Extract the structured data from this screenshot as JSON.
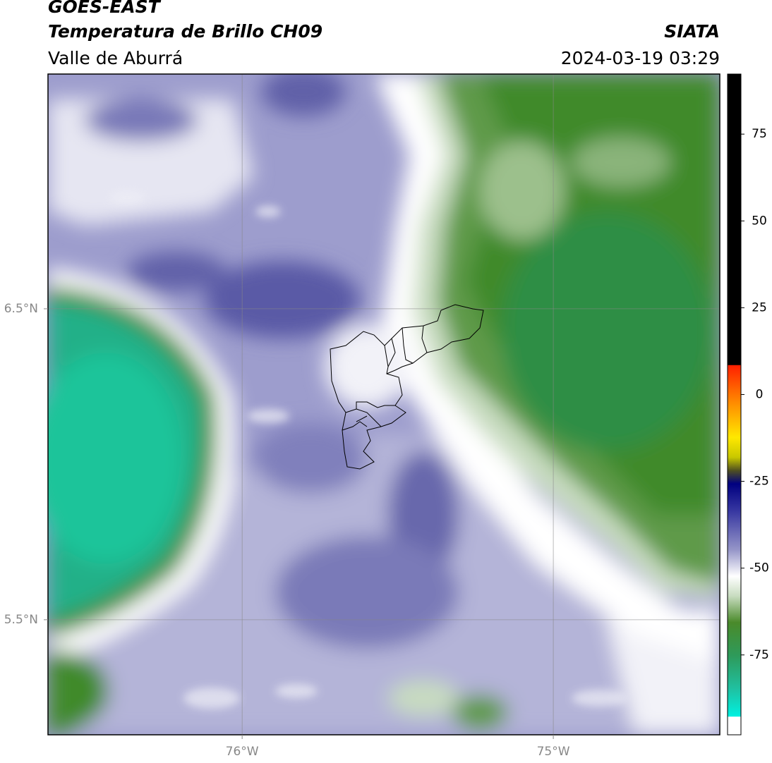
{
  "header": {
    "title_1": "GOES-EAST",
    "title_2": "Temperatura de Brillo CH09",
    "subtitle": "Valle de Aburrá",
    "organization": "SIATA",
    "datetime": "2024-03-19 03:29"
  },
  "map": {
    "xlim": [
      -76.624,
      -74.465
    ],
    "ylim": [
      5.13,
      7.255
    ],
    "xticks": [
      {
        "value": -76,
        "label": "76°W"
      },
      {
        "value": -75,
        "label": "75°W"
      }
    ],
    "yticks": [
      {
        "value": 6.5,
        "label": "6.5°N"
      },
      {
        "value": 5.5,
        "label": "5.5°N"
      }
    ]
  },
  "colorbar": {
    "lim": [
      -98,
      92.3
    ],
    "ticks": [
      75,
      50,
      25,
      0,
      -25,
      -50,
      -75
    ]
  }
}
